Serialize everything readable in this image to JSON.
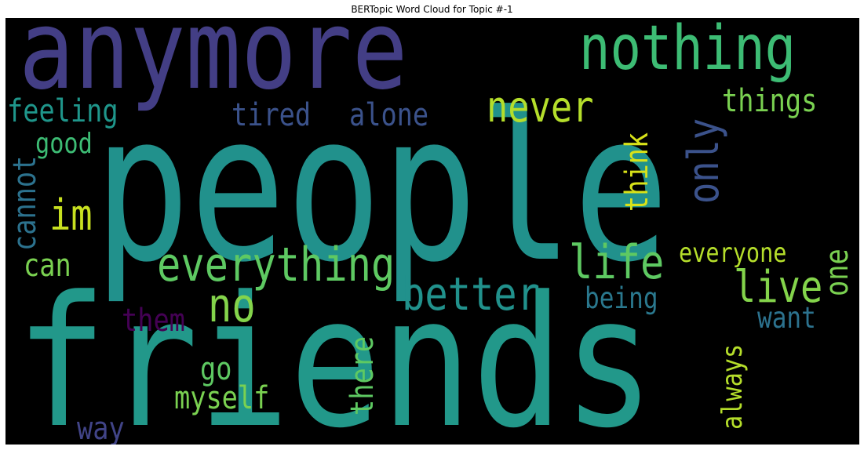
{
  "title": "BERTopic Word Cloud for Topic #-1",
  "chart_data": {
    "type": "wordcloud",
    "title": "BERTopic Word Cloud for Topic #-1",
    "background": "#000000",
    "colormap": "viridis",
    "words": [
      {
        "text": "people",
        "weight": 1.0,
        "color": "#21918c",
        "orientation": "horizontal"
      },
      {
        "text": "friends",
        "weight": 0.95,
        "color": "#22988a",
        "orientation": "horizontal"
      },
      {
        "text": "anymore",
        "weight": 0.62,
        "color": "#433e85",
        "orientation": "horizontal"
      },
      {
        "text": "nothing",
        "weight": 0.36,
        "color": "#3dbc74",
        "orientation": "horizontal"
      },
      {
        "text": "everything",
        "weight": 0.28,
        "color": "#5ec962",
        "orientation": "horizontal"
      },
      {
        "text": "better",
        "weight": 0.27,
        "color": "#21918c",
        "orientation": "horizontal"
      },
      {
        "text": "never",
        "weight": 0.24,
        "color": "#b5de2b",
        "orientation": "horizontal"
      },
      {
        "text": "life",
        "weight": 0.24,
        "color": "#5ec962",
        "orientation": "horizontal"
      },
      {
        "text": "live",
        "weight": 0.24,
        "color": "#84d44b",
        "orientation": "horizontal"
      },
      {
        "text": "no",
        "weight": 0.24,
        "color": "#84d44b",
        "orientation": "horizontal"
      },
      {
        "text": "im",
        "weight": 0.22,
        "color": "#c8e020",
        "orientation": "horizontal"
      },
      {
        "text": "only",
        "weight": 0.22,
        "color": "#3b528b",
        "orientation": "vertical"
      },
      {
        "text": "tired",
        "weight": 0.17,
        "color": "#3b528b",
        "orientation": "horizontal"
      },
      {
        "text": "alone",
        "weight": 0.17,
        "color": "#3b528b",
        "orientation": "horizontal"
      },
      {
        "text": "things",
        "weight": 0.17,
        "color": "#7ad151",
        "orientation": "horizontal"
      },
      {
        "text": "feeling",
        "weight": 0.17,
        "color": "#1f968b",
        "orientation": "horizontal"
      },
      {
        "text": "think",
        "weight": 0.17,
        "color": "#d8e219",
        "orientation": "vertical"
      },
      {
        "text": "everyone",
        "weight": 0.17,
        "color": "#b5de2b",
        "orientation": "horizontal"
      },
      {
        "text": "one",
        "weight": 0.17,
        "color": "#7ad151",
        "orientation": "vertical"
      },
      {
        "text": "being",
        "weight": 0.16,
        "color": "#2a788e",
        "orientation": "horizontal"
      },
      {
        "text": "want",
        "weight": 0.16,
        "color": "#2c728e",
        "orientation": "horizontal"
      },
      {
        "text": "cannot",
        "weight": 0.16,
        "color": "#2c728e",
        "orientation": "vertical"
      },
      {
        "text": "good",
        "weight": 0.15,
        "color": "#3dbc74",
        "orientation": "horizontal"
      },
      {
        "text": "can",
        "weight": 0.16,
        "color": "#7ad151",
        "orientation": "horizontal"
      },
      {
        "text": "them",
        "weight": 0.16,
        "color": "#440154",
        "orientation": "horizontal"
      },
      {
        "text": "go",
        "weight": 0.16,
        "color": "#5ec962",
        "orientation": "horizontal"
      },
      {
        "text": "myself",
        "weight": 0.16,
        "color": "#7ad151",
        "orientation": "horizontal"
      },
      {
        "text": "there",
        "weight": 0.16,
        "color": "#5ec962",
        "orientation": "vertical"
      },
      {
        "text": "always",
        "weight": 0.15,
        "color": "#b5de2b",
        "orientation": "vertical"
      },
      {
        "text": "way",
        "weight": 0.15,
        "color": "#414487",
        "orientation": "horizontal"
      }
    ]
  }
}
